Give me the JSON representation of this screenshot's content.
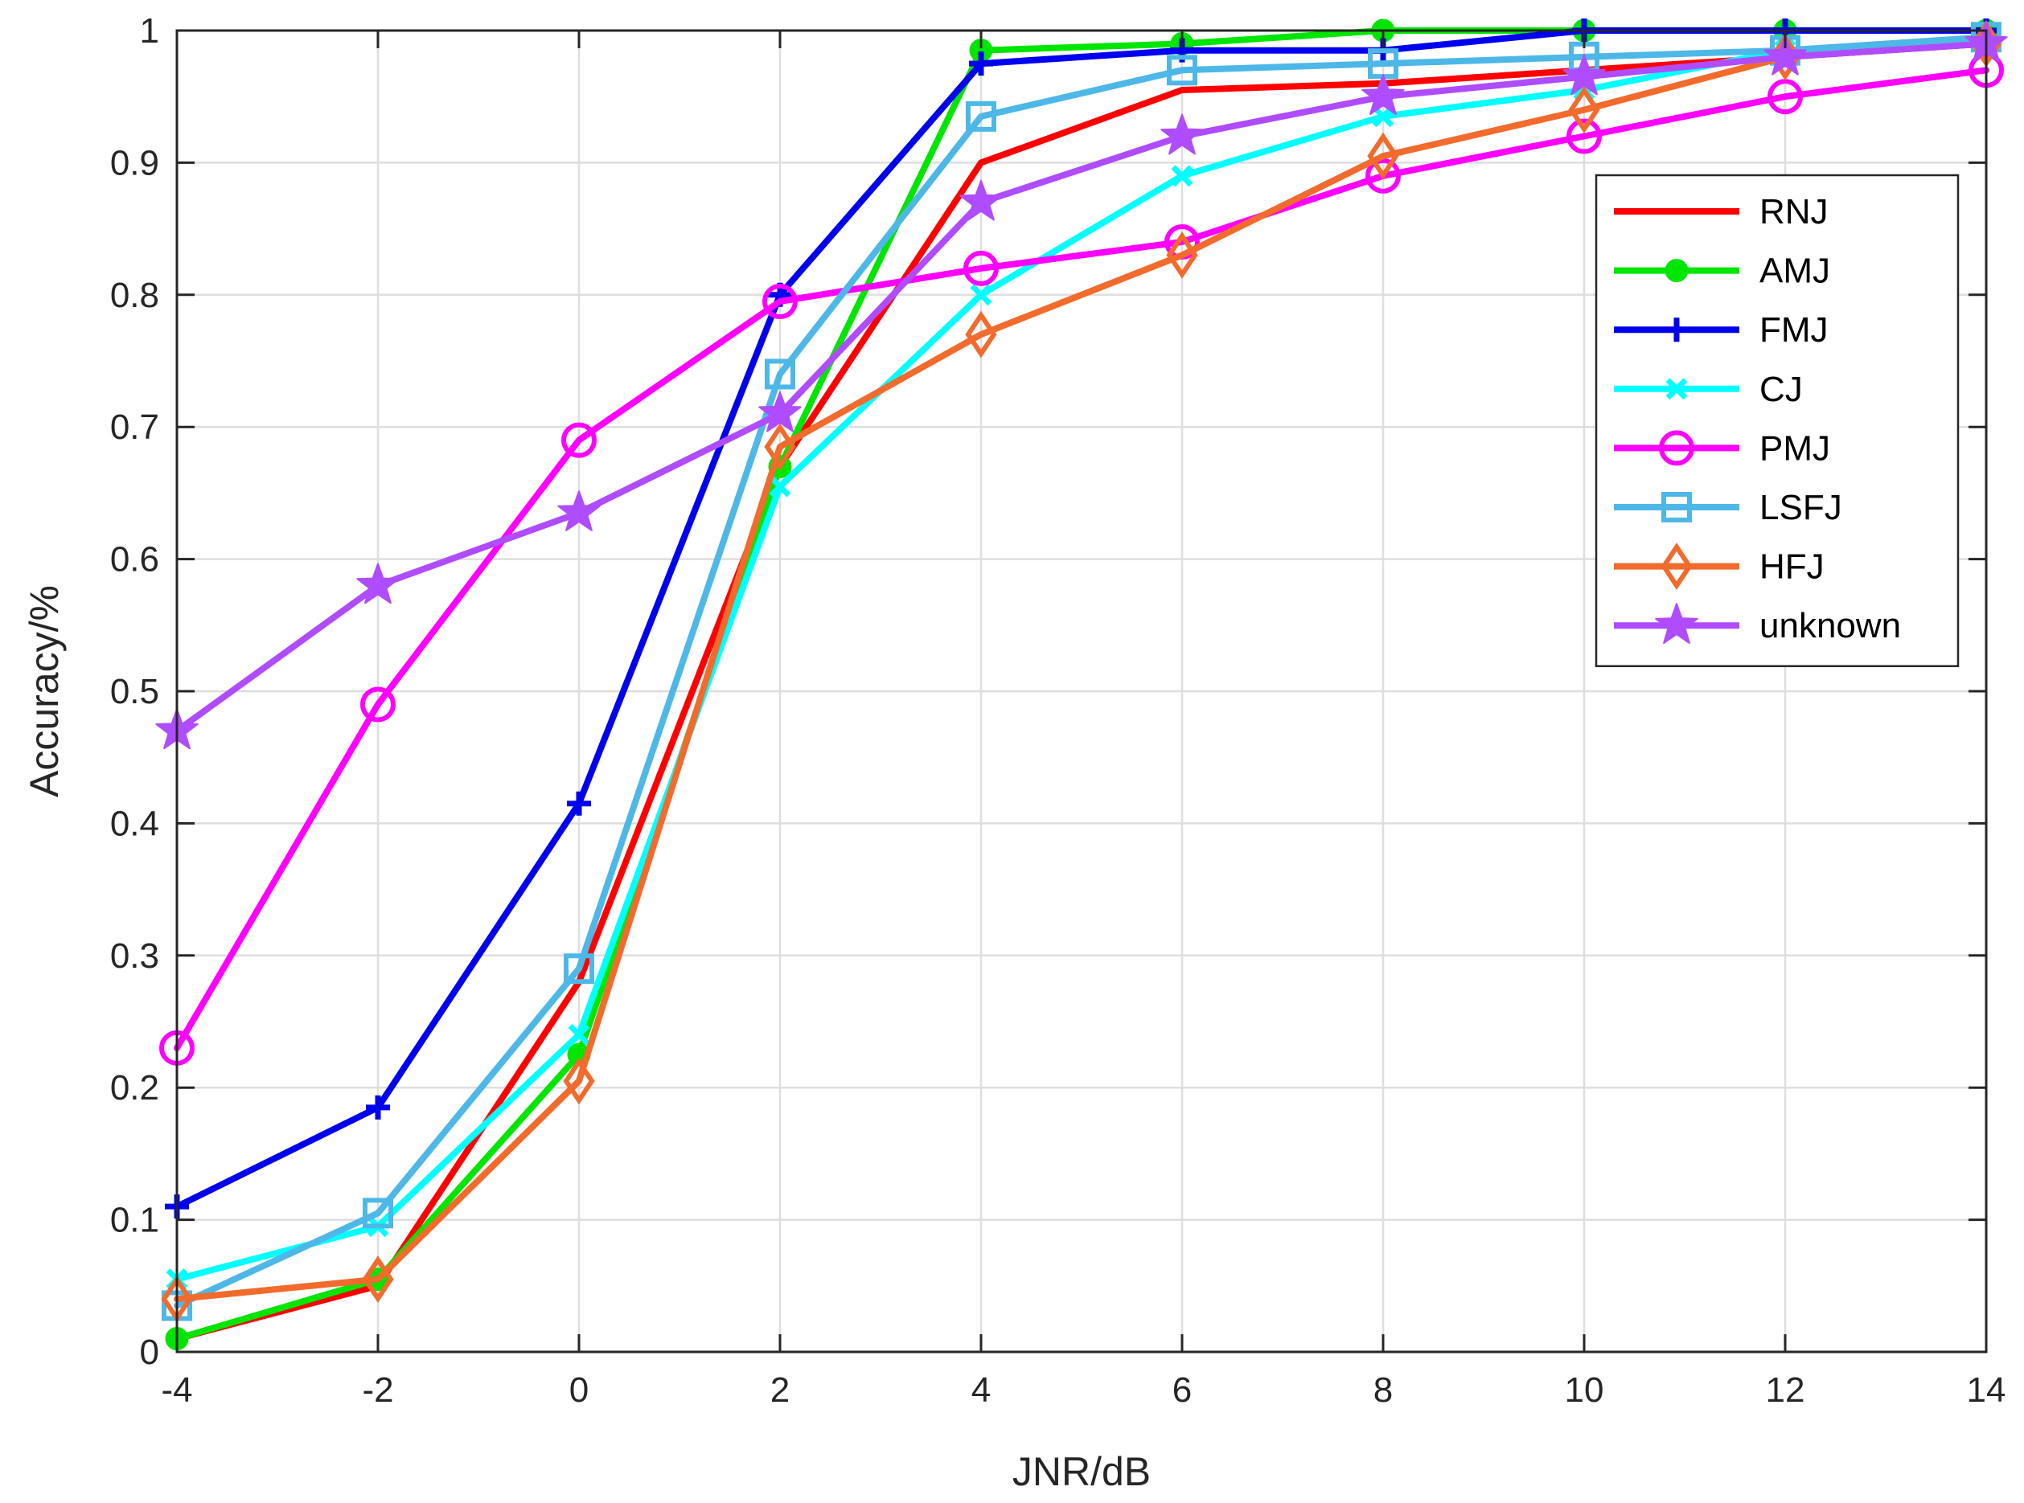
{
  "chart_data": {
    "type": "line",
    "xlabel": "JNR/dB",
    "ylabel": "Accuracy/%",
    "x": [
      -4,
      -2,
      0,
      2,
      4,
      6,
      8,
      10,
      12,
      14
    ],
    "xlim": [
      -4,
      14
    ],
    "ylim": [
      0,
      1
    ],
    "xticks": [
      "-4",
      "-2",
      "0",
      "2",
      "4",
      "6",
      "8",
      "10",
      "12",
      "14"
    ],
    "yticks": [
      "0",
      "0.1",
      "0.2",
      "0.3",
      "0.4",
      "0.5",
      "0.6",
      "0.7",
      "0.8",
      "0.9",
      "1"
    ],
    "grid": true,
    "legend_position": "top-right",
    "series": [
      {
        "name": "RNJ",
        "color": "#ff0000",
        "marker": "none",
        "values": [
          0.01,
          0.05,
          0.28,
          0.67,
          0.9,
          0.955,
          0.96,
          0.97,
          0.98,
          0.99
        ]
      },
      {
        "name": "AMJ",
        "color": "#00e600",
        "marker": "circle-filled",
        "values": [
          0.01,
          0.055,
          0.225,
          0.67,
          0.985,
          0.99,
          1.0,
          1.0,
          1.0,
          1.0
        ]
      },
      {
        "name": "FMJ",
        "color": "#0000ee",
        "marker": "plus",
        "values": [
          0.11,
          0.185,
          0.415,
          0.8,
          0.975,
          0.985,
          0.985,
          1.0,
          1.0,
          1.0
        ]
      },
      {
        "name": "CJ",
        "color": "#00ffff",
        "marker": "x",
        "values": [
          0.055,
          0.095,
          0.24,
          0.655,
          0.8,
          0.89,
          0.935,
          0.955,
          0.985,
          0.99
        ]
      },
      {
        "name": "PMJ",
        "color": "#ff00ff",
        "marker": "circle-open",
        "values": [
          0.23,
          0.49,
          0.69,
          0.795,
          0.82,
          0.84,
          0.89,
          0.92,
          0.95,
          0.97
        ]
      },
      {
        "name": "LSFJ",
        "color": "#4db8e8",
        "marker": "square",
        "values": [
          0.035,
          0.105,
          0.29,
          0.74,
          0.935,
          0.97,
          0.975,
          0.98,
          0.985,
          0.995
        ]
      },
      {
        "name": "HFJ",
        "color": "#f26b2c",
        "marker": "diamond",
        "values": [
          0.04,
          0.055,
          0.205,
          0.685,
          0.77,
          0.83,
          0.905,
          0.94,
          0.98,
          0.99
        ]
      },
      {
        "name": "unknown",
        "color": "#b04cff",
        "marker": "star",
        "values": [
          0.47,
          0.58,
          0.635,
          0.71,
          0.87,
          0.92,
          0.95,
          0.965,
          0.98,
          0.99
        ]
      }
    ]
  }
}
